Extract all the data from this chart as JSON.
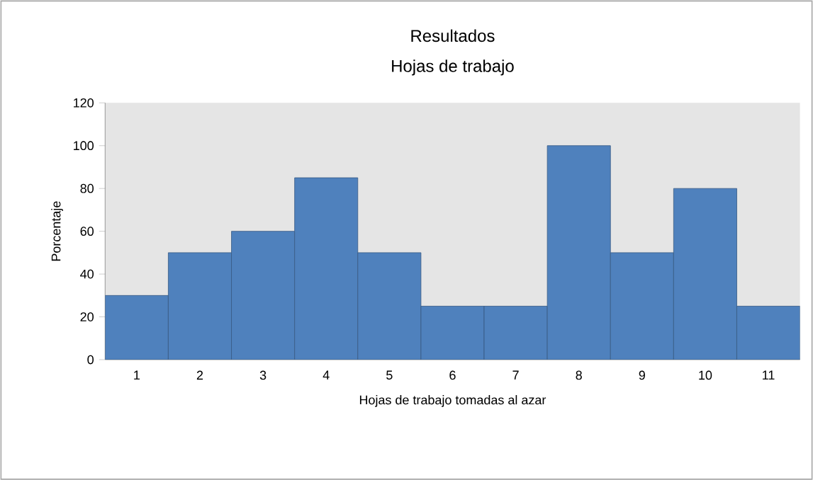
{
  "chart_data": {
    "type": "bar",
    "title": "Resultados",
    "subtitle": "Hojas de trabajo",
    "xlabel": "Hojas de trabajo tomadas al azar",
    "ylabel": "Porcentaje",
    "categories": [
      "1",
      "2",
      "3",
      "4",
      "5",
      "6",
      "7",
      "8",
      "9",
      "10",
      "11"
    ],
    "values": [
      30,
      50,
      60,
      85,
      50,
      25,
      25,
      100,
      50,
      80,
      25
    ],
    "color": "#4f81bd",
    "ylim": [
      0,
      120
    ],
    "yticks": [
      0,
      20,
      40,
      60,
      80,
      100,
      120
    ]
  }
}
